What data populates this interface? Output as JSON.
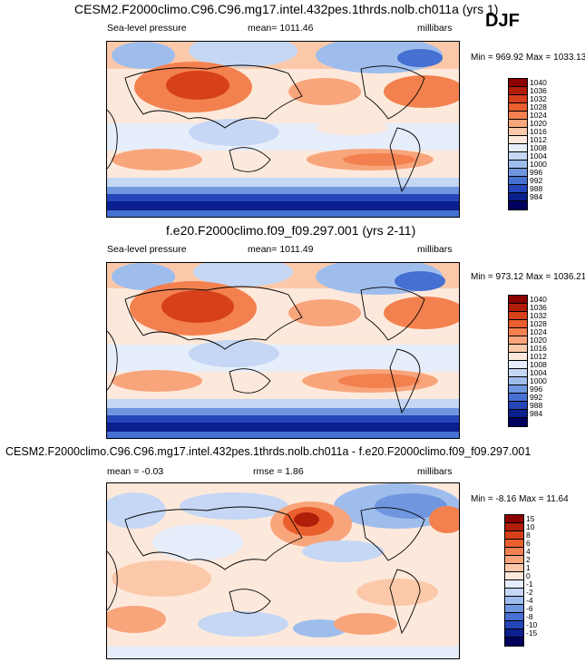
{
  "season": "DJF",
  "panels": [
    {
      "title": "CESM2.F2000climo.C96.C96.mg17.intel.432pes.1thrds.nolb.ch011a (yrs 1)",
      "variable": "Sea-level pressure",
      "stat": "mean= 1011.46",
      "units": "millibars",
      "minmax": "Min = 969.92 Max = 1033.13",
      "levels": [
        "1040",
        "1036",
        "1032",
        "1028",
        "1024",
        "1020",
        "1016",
        "1012",
        "1008",
        "1004",
        "1000",
        "996",
        "992",
        "988",
        "984"
      ],
      "colors": [
        "#8b0000",
        "#b01e0a",
        "#d6401a",
        "#ea5f2e",
        "#f3814f",
        "#f8a57c",
        "#fbc9aa",
        "#fde9dc",
        "#e6eefb",
        "#c5d7f4",
        "#9fbdec",
        "#6f96df",
        "#4670d2",
        "#2546b8",
        "#0b1f8f",
        "#00005e"
      ]
    },
    {
      "title": "f.e20.F2000climo.f09_f09.297.001 (yrs 2-11)",
      "variable": "Sea-level pressure",
      "stat": "mean= 1011.49",
      "units": "millibars",
      "minmax": "Min = 973.12 Max = 1036.21",
      "levels": [
        "1040",
        "1036",
        "1032",
        "1028",
        "1024",
        "1020",
        "1016",
        "1012",
        "1008",
        "1004",
        "1000",
        "996",
        "992",
        "988",
        "984"
      ],
      "colors": [
        "#8b0000",
        "#b01e0a",
        "#d6401a",
        "#ea5f2e",
        "#f3814f",
        "#f8a57c",
        "#fbc9aa",
        "#fde9dc",
        "#e6eefb",
        "#c5d7f4",
        "#9fbdec",
        "#6f96df",
        "#4670d2",
        "#2546b8",
        "#0b1f8f",
        "#00005e"
      ]
    },
    {
      "title": "CESM2.F2000climo.C96.C96.mg17.intel.432pes.1thrds.nolb.ch011a - f.e20.F2000climo.f09_f09.297.001",
      "variable": "mean =  -0.03",
      "stat": "rmse =   1.86",
      "units": "millibars",
      "minmax": "Min =  -8.16 Max =  11.64",
      "levels": [
        "15",
        "10",
        "8",
        "6",
        "4",
        "2",
        "1",
        "0",
        "-1",
        "-2",
        "-4",
        "-6",
        "-8",
        "-10",
        "-15"
      ],
      "colors": [
        "#8b0000",
        "#b01e0a",
        "#d6401a",
        "#ea5f2e",
        "#f3814f",
        "#f8a57c",
        "#fbc9aa",
        "#fde9dc",
        "#e6eefb",
        "#c5d7f4",
        "#9fbdec",
        "#6f96df",
        "#4670d2",
        "#2546b8",
        "#0b1f8f",
        "#00005e"
      ]
    }
  ]
}
